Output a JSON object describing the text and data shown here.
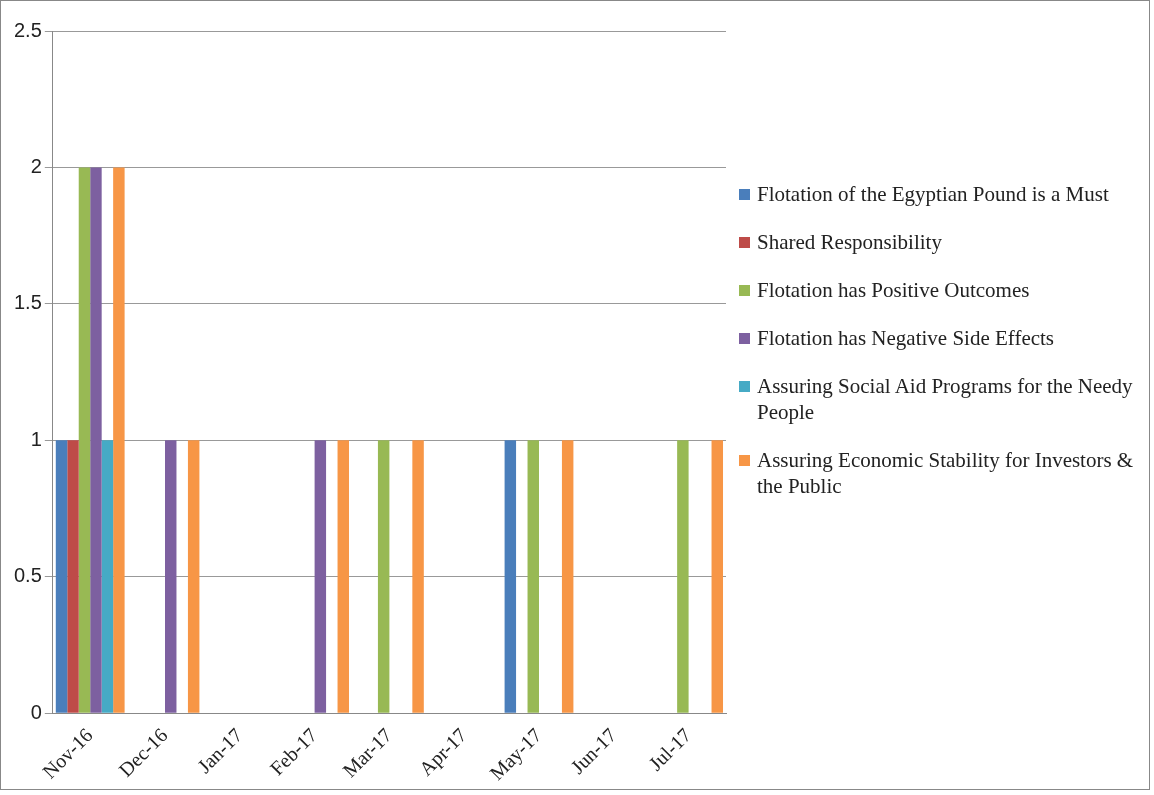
{
  "chart_data": {
    "type": "bar",
    "categories": [
      "Nov-16",
      "Dec-16",
      "Jan-17",
      "Feb-17",
      "Mar-17",
      "Apr-17",
      "May-17",
      "Jun-17",
      "Jul-17"
    ],
    "series": [
      {
        "name": "Flotation of the Egyptian Pound is a Must",
        "color": "#4a7ebb",
        "values": [
          1,
          0,
          0,
          0,
          0,
          0,
          1,
          0,
          0
        ]
      },
      {
        "name": "Shared Responsibility",
        "color": "#be4b48",
        "values": [
          1,
          0,
          0,
          0,
          0,
          0,
          0,
          0,
          0
        ]
      },
      {
        "name": "Flotation has Positive Outcomes",
        "color": "#98b954",
        "values": [
          2,
          0,
          0,
          0,
          1,
          0,
          1,
          0,
          1
        ]
      },
      {
        "name": "Flotation has Negative Side Effects",
        "color": "#7d60a0",
        "values": [
          2,
          1,
          0,
          1,
          0,
          0,
          0,
          0,
          0
        ]
      },
      {
        "name": "Assuring Social Aid Programs for the Needy People",
        "color": "#46aac5",
        "values": [
          1,
          0,
          0,
          0,
          0,
          0,
          0,
          0,
          0
        ]
      },
      {
        "name": "Assuring Economic Stability for Investors  & the Public",
        "color": "#f79646",
        "values": [
          2,
          1,
          0,
          1,
          1,
          0,
          1,
          0,
          1
        ]
      }
    ],
    "ylim": [
      0,
      2.5
    ],
    "yticks": [
      0,
      0.5,
      1,
      1.5,
      2,
      2.5
    ],
    "grid": "y",
    "legend": "right"
  }
}
